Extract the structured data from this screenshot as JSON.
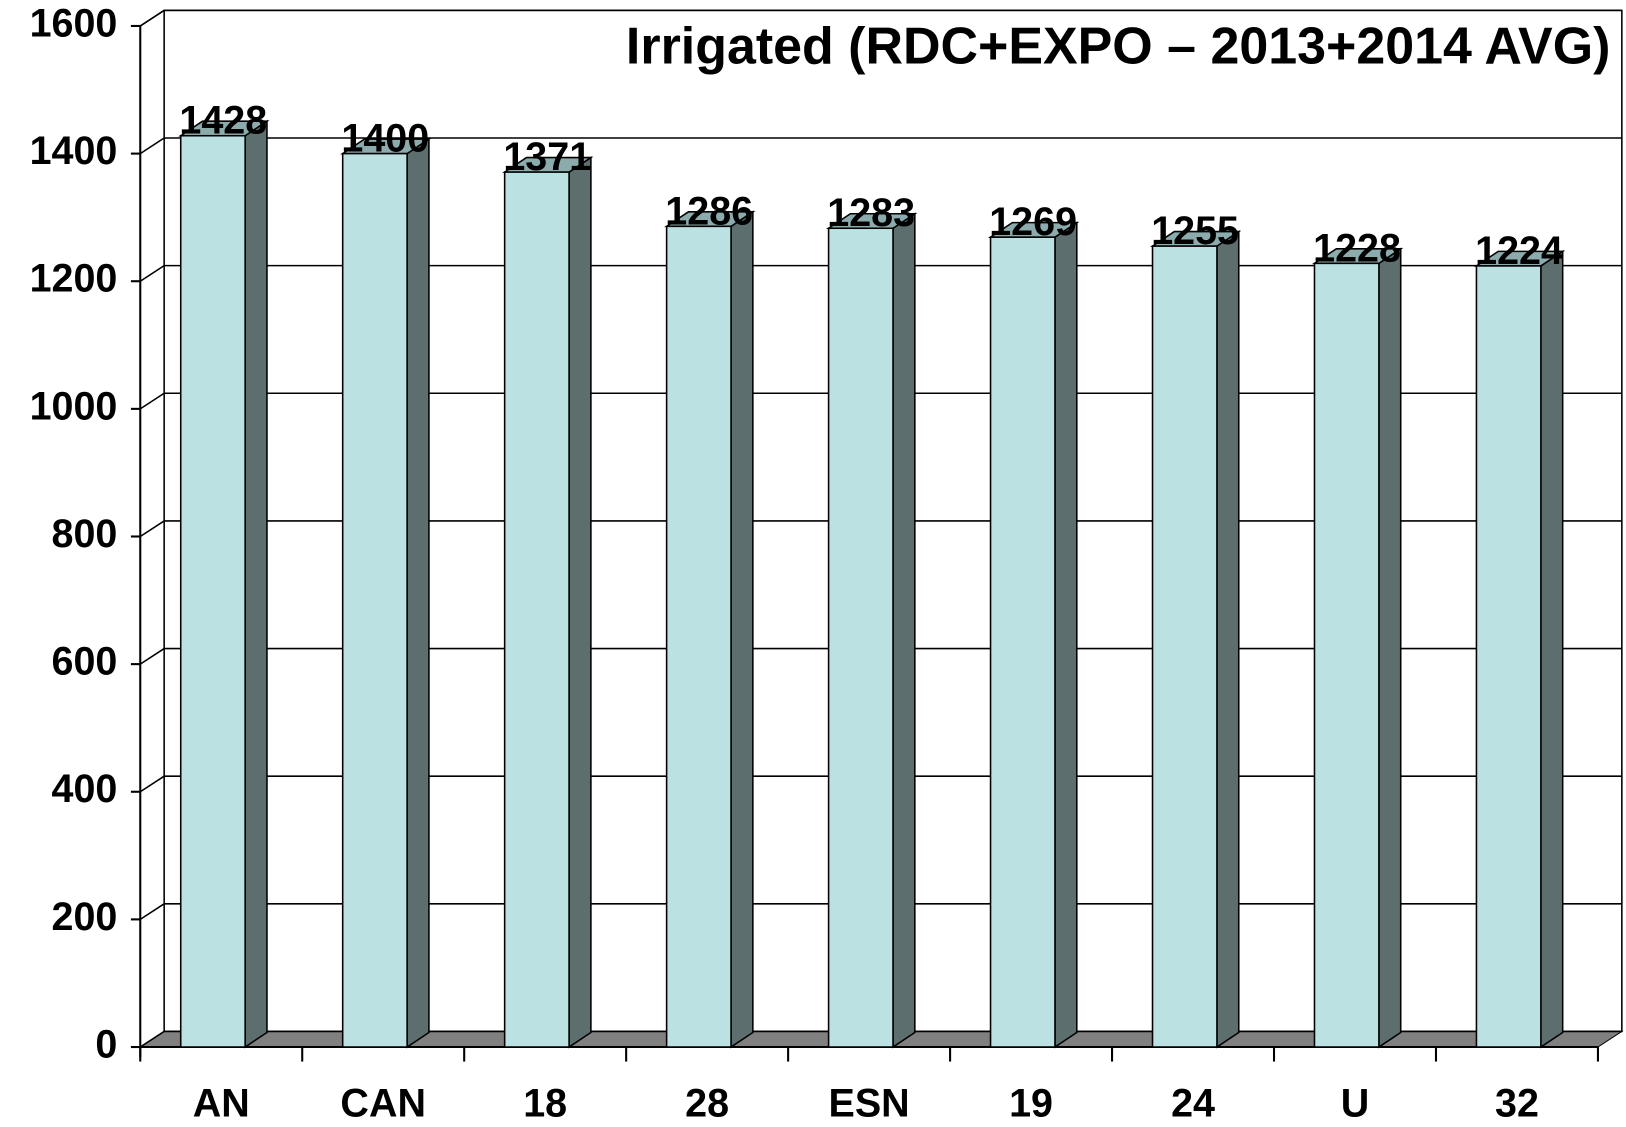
{
  "chart_data": {
    "type": "bar",
    "title": "Irrigated (RDC+EXPO – 2013+2014 AVG)",
    "categories": [
      "AN",
      "CAN",
      "18",
      "28",
      "ESN",
      "19",
      "24",
      "U",
      "32"
    ],
    "values": [
      1428,
      1400,
      1371,
      1286,
      1283,
      1269,
      1255,
      1228,
      1224
    ],
    "color": "#bce1e3",
    "ylim": [
      0,
      1600
    ],
    "yticks": [
      0,
      200,
      400,
      600,
      800,
      1000,
      1200,
      1400,
      1600
    ],
    "grid": true
  }
}
